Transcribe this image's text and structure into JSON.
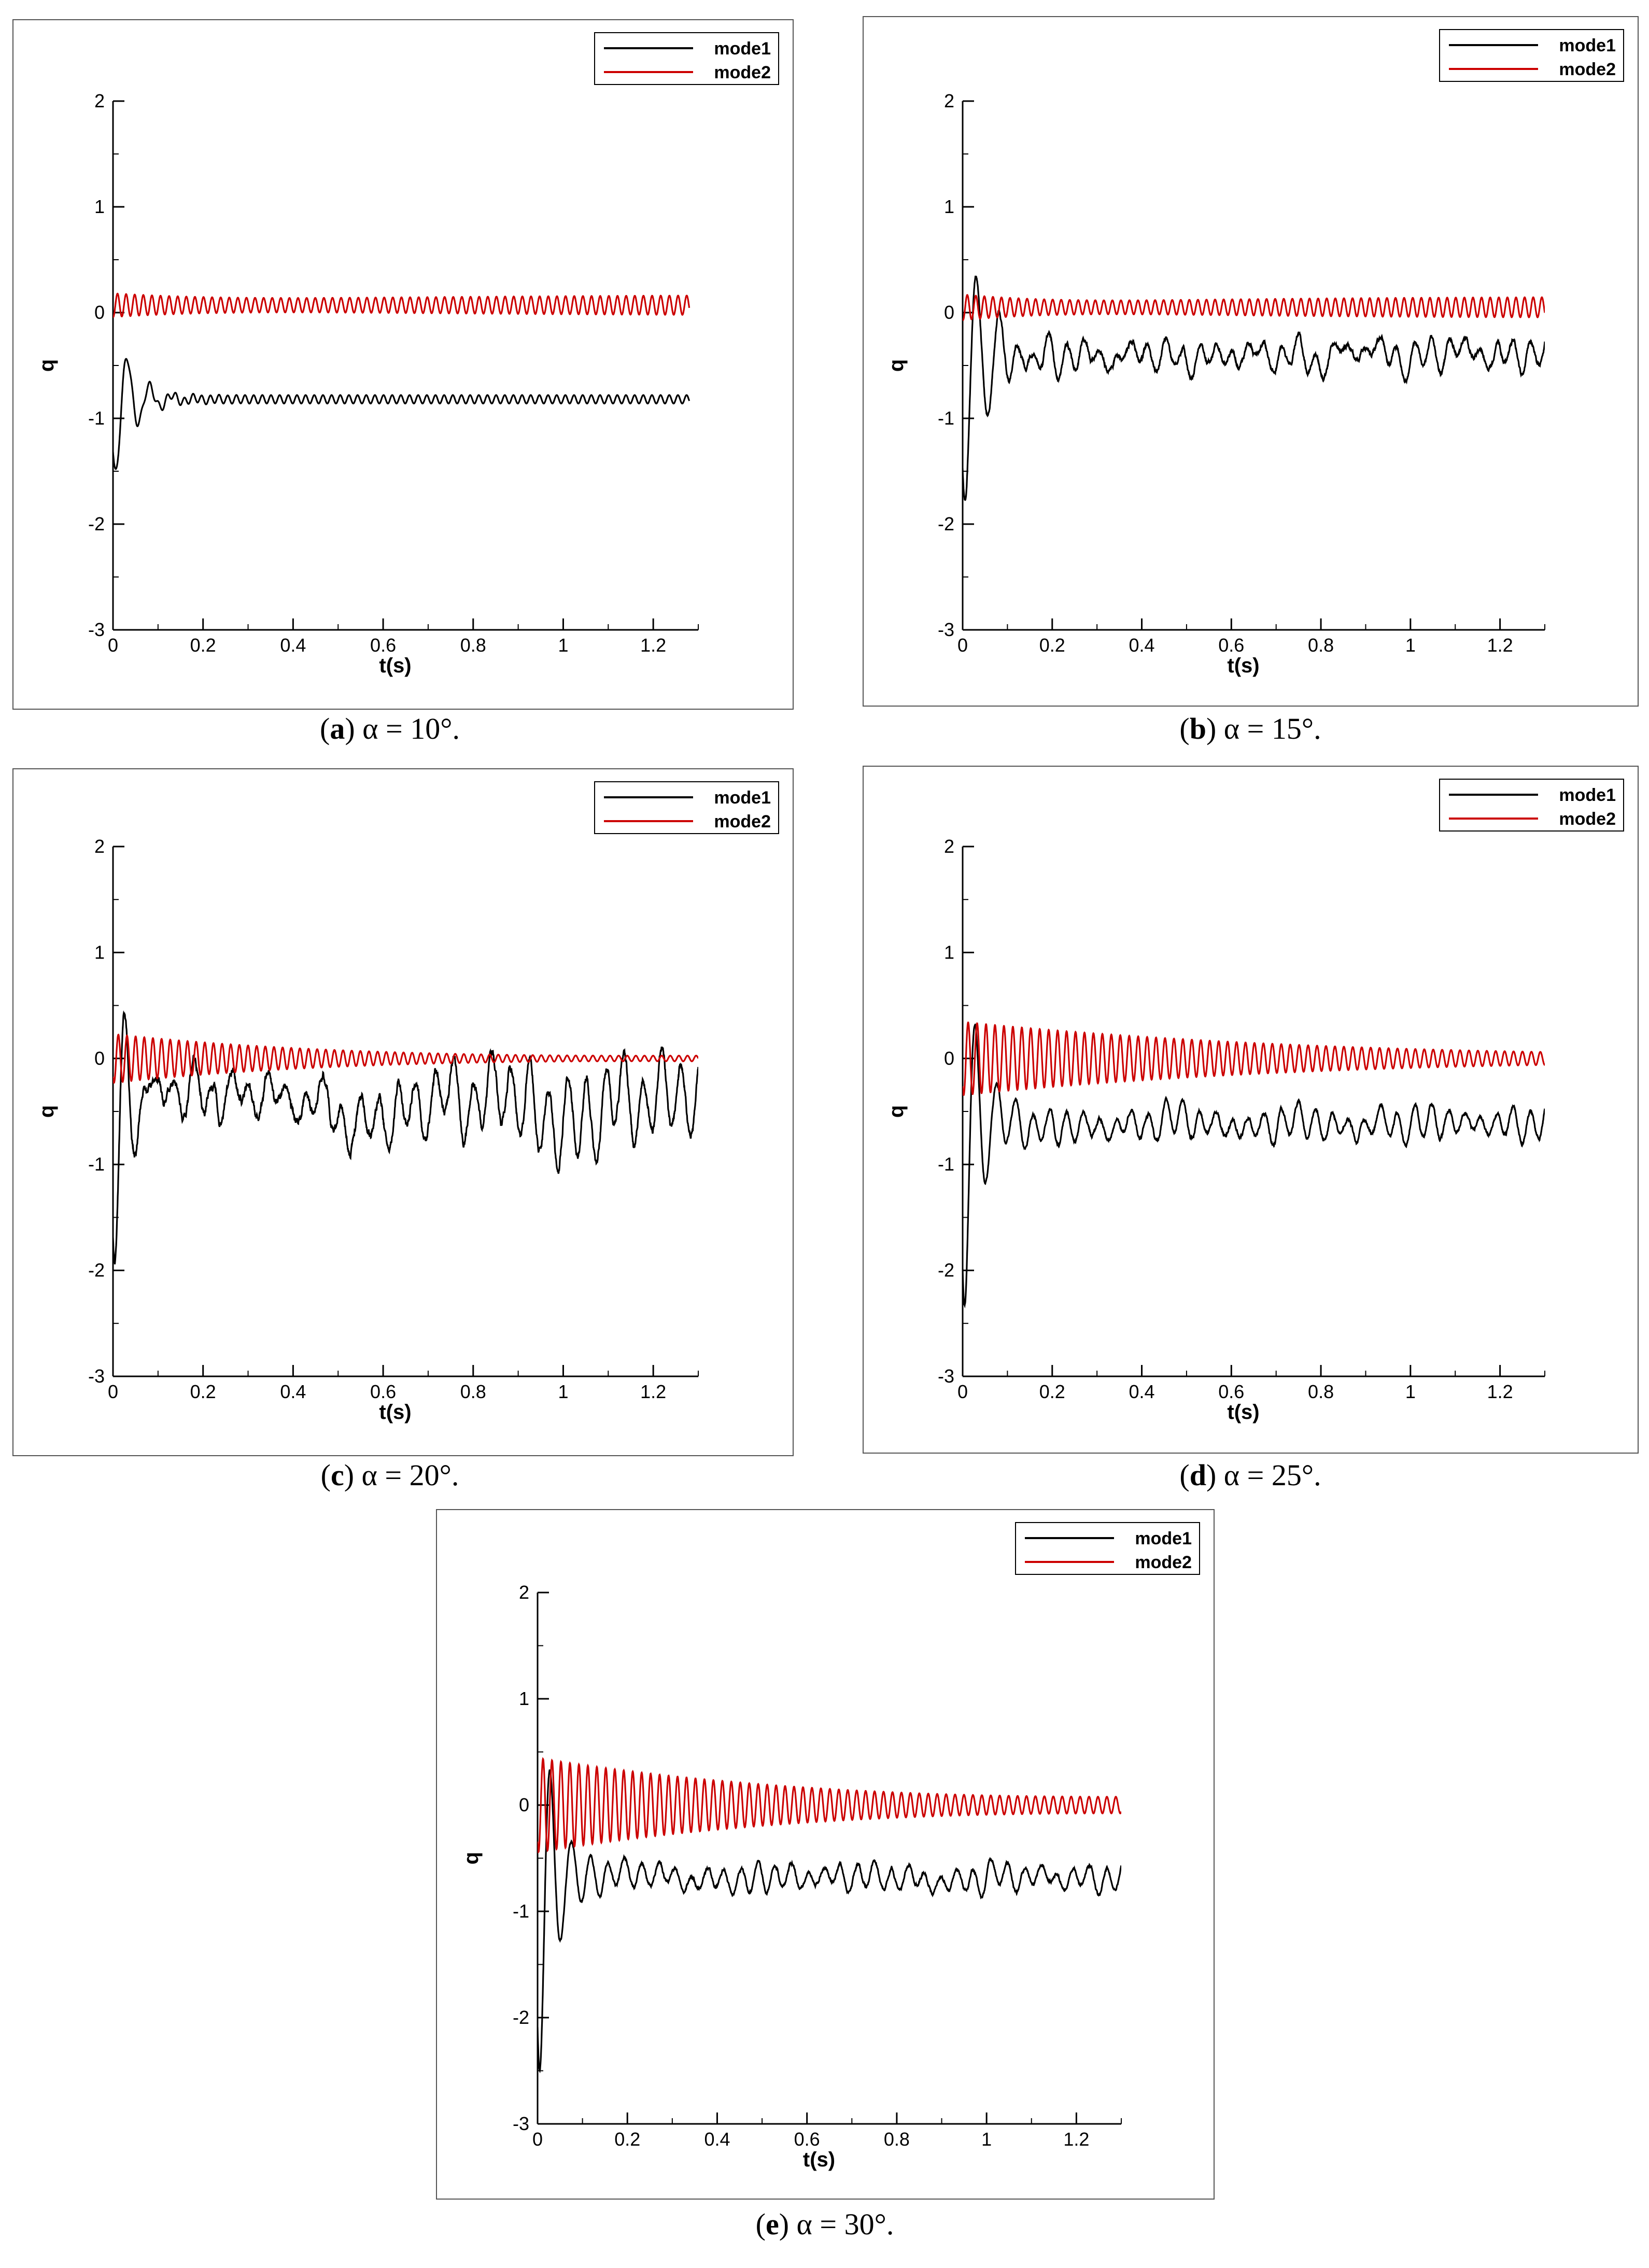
{
  "chart_data": [
    {
      "type": "line",
      "panel": "a",
      "caption": {
        "letter": "a",
        "text": "α = 10°."
      },
      "xlabel": "t(s)",
      "ylabel": "q",
      "xlim": [
        0,
        1.3
      ],
      "ylim": [
        -3,
        2
      ],
      "xticks": [
        "0",
        "0.2",
        "0.4",
        "0.6",
        "0.8",
        "1",
        "1.2"
      ],
      "yticks": [
        "-3",
        "-2",
        "-1",
        "0",
        "1",
        "2"
      ],
      "legend": "top-right",
      "grid": false,
      "t_end": 1.28,
      "series": [
        {
          "name": "mode1",
          "color": "#000000",
          "mean": -0.82,
          "init_amp": 0.85,
          "decay": 0.045,
          "freq": 20,
          "sustain_amp": 0.04,
          "sustain_freq": 52,
          "noise": 0.0,
          "start": -0.6
        },
        {
          "name": "mode2",
          "color": "#cc0000",
          "mean": 0.07,
          "init_amp": 0.12,
          "decay": 0.5,
          "freq": 52,
          "sustain_amp": 0.1,
          "sustain_freq": 52,
          "noise": 0.0,
          "start": 0.0
        }
      ]
    },
    {
      "type": "line",
      "panel": "b",
      "caption": {
        "letter": "b",
        "text": "α = 15°."
      },
      "xlabel": "t(s)",
      "ylabel": "q",
      "xlim": [
        0,
        1.3
      ],
      "ylim": [
        -3,
        2
      ],
      "xticks": [
        "0",
        "0.2",
        "0.4",
        "0.6",
        "0.8",
        "1",
        "1.2"
      ],
      "yticks": [
        "-3",
        "-2",
        "-1",
        "0",
        "1",
        "2"
      ],
      "legend": "top-right",
      "grid": false,
      "t_end": 1.3,
      "series": [
        {
          "name": "mode1",
          "color": "#000000",
          "mean": -0.4,
          "init_amp": 1.6,
          "decay": 0.05,
          "freq": 20,
          "sustain_amp": 0.1,
          "sustain_freq": 27,
          "noise": 0.1,
          "start": -0.3
        },
        {
          "name": "mode2",
          "color": "#cc0000",
          "mean": 0.05,
          "init_amp": 0.14,
          "decay": 0.4,
          "freq": 52,
          "sustain_amp": 0.1,
          "sustain_freq": 52,
          "noise": 0.0,
          "start": 0.0
        }
      ]
    },
    {
      "type": "line",
      "panel": "c",
      "caption": {
        "letter": "c",
        "text": "α = 20°."
      },
      "xlabel": "t(s)",
      "ylabel": "q",
      "xlim": [
        0,
        1.3
      ],
      "ylim": [
        -3,
        2
      ],
      "xticks": [
        "0",
        "0.2",
        "0.4",
        "0.6",
        "0.8",
        "1",
        "1.2"
      ],
      "yticks": [
        "-3",
        "-2",
        "-1",
        "0",
        "1",
        "2"
      ],
      "legend": "top-right",
      "grid": false,
      "t_end": 1.3,
      "series": [
        {
          "name": "mode1",
          "color": "#000000",
          "mean": -0.4,
          "init_amp": 1.9,
          "decay": 0.04,
          "freq": 22,
          "sustain_amp": 0.25,
          "sustain_freq": 24,
          "noise": 0.2,
          "start": -0.3
        },
        {
          "name": "mode2",
          "color": "#cc0000",
          "mean": 0.0,
          "init_amp": 0.25,
          "decay": 0.55,
          "freq": 52,
          "sustain_amp": 0.04,
          "sustain_freq": 52,
          "noise": 0.0,
          "start": 0.0
        }
      ]
    },
    {
      "type": "line",
      "panel": "d",
      "caption": {
        "letter": "d",
        "text": "α = 25°."
      },
      "xlabel": "t(s)",
      "ylabel": "q",
      "xlim": [
        0,
        1.3
      ],
      "ylim": [
        -3,
        2
      ],
      "xticks": [
        "0",
        "0.2",
        "0.4",
        "0.6",
        "0.8",
        "1",
        "1.2"
      ],
      "yticks": [
        "-3",
        "-2",
        "-1",
        "0",
        "1",
        "2"
      ],
      "legend": "top-right",
      "grid": false,
      "t_end": 1.3,
      "series": [
        {
          "name": "mode1",
          "color": "#000000",
          "mean": -0.62,
          "init_amp": 2.1,
          "decay": 0.04,
          "freq": 22,
          "sustain_amp": 0.12,
          "sustain_freq": 27,
          "noise": 0.08,
          "start": -0.4
        },
        {
          "name": "mode2",
          "color": "#cc0000",
          "mean": 0.0,
          "init_amp": 0.38,
          "decay": 0.9,
          "freq": 50,
          "sustain_amp": 0.07,
          "sustain_freq": 50,
          "noise": 0.0,
          "start": 0.0
        }
      ]
    },
    {
      "type": "line",
      "panel": "e",
      "caption": {
        "letter": "e",
        "text": "α = 30°."
      },
      "xlabel": "t(s)",
      "ylabel": "q",
      "xlim": [
        0,
        1.3
      ],
      "ylim": [
        -3,
        2
      ],
      "xticks": [
        "0",
        "0.2",
        "0.4",
        "0.6",
        "0.8",
        "1",
        "1.2"
      ],
      "yticks": [
        "-3",
        "-2",
        "-1",
        "0",
        "1",
        "2"
      ],
      "legend": "top-right",
      "grid": false,
      "t_end": 1.3,
      "series": [
        {
          "name": "mode1",
          "color": "#000000",
          "mean": -0.68,
          "init_amp": 2.2,
          "decay": 0.04,
          "freq": 22,
          "sustain_amp": 0.1,
          "sustain_freq": 27,
          "noise": 0.07,
          "start": -0.4
        },
        {
          "name": "mode2",
          "color": "#cc0000",
          "mean": 0.0,
          "init_amp": 0.5,
          "decay": 0.75,
          "freq": 50,
          "sustain_amp": 0.12,
          "sustain_freq": 50,
          "noise": 0.0,
          "start": 0.0
        }
      ]
    }
  ]
}
